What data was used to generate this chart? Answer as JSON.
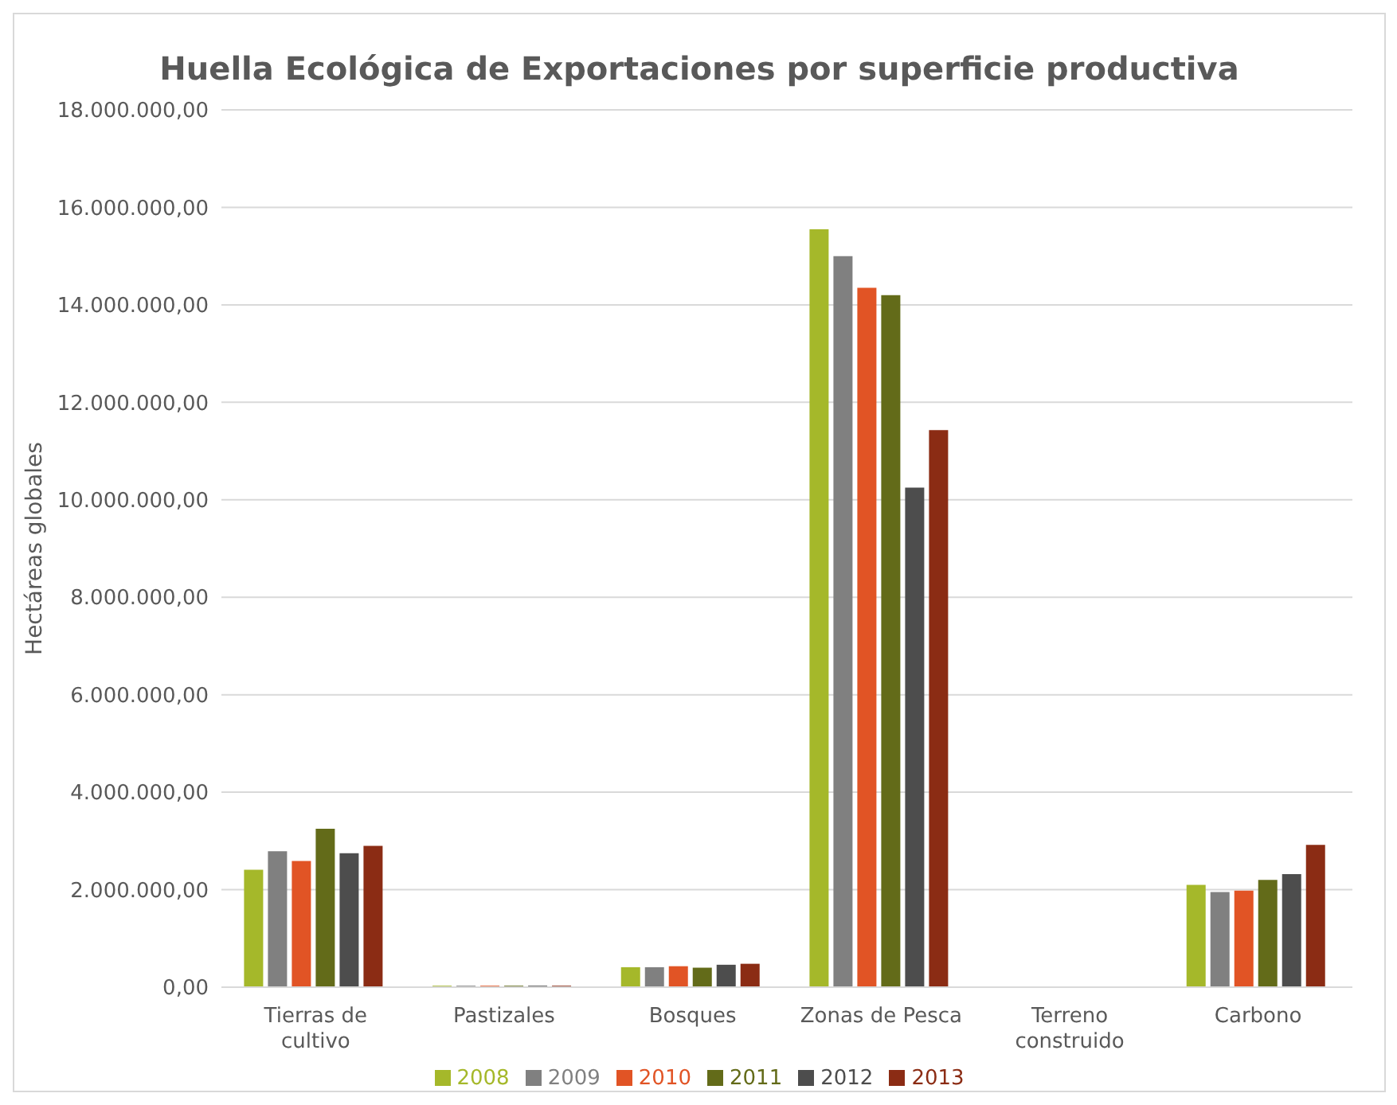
{
  "chart_data": {
    "type": "bar",
    "title": "Huella Ecológica de Exportaciones por superficie productiva",
    "ylabel": "Hectáreas globales",
    "categories": [
      "Tierras de cultivo",
      "Pastizales",
      "Bosques",
      "Zonas de Pesca",
      "Terreno construido",
      "Carbono"
    ],
    "series": [
      {
        "name": "2008",
        "color": "#a5b82a",
        "values": [
          2410000,
          30000,
          410000,
          15550000,
          0,
          2100000
        ]
      },
      {
        "name": "2009",
        "color": "#808080",
        "values": [
          2790000,
          30000,
          410000,
          15000000,
          0,
          1950000
        ]
      },
      {
        "name": "2010",
        "color": "#e15425",
        "values": [
          2590000,
          30000,
          430000,
          14350000,
          0,
          1980000
        ]
      },
      {
        "name": "2011",
        "color": "#636b19",
        "values": [
          3250000,
          30000,
          400000,
          14200000,
          0,
          2200000
        ]
      },
      {
        "name": "2012",
        "color": "#4d4d4d",
        "values": [
          2750000,
          30000,
          460000,
          10250000,
          0,
          2320000
        ]
      },
      {
        "name": "2013",
        "color": "#8b2c14",
        "values": [
          2900000,
          30000,
          480000,
          11430000,
          0,
          2920000
        ]
      }
    ],
    "ylim": [
      0,
      18000000
    ],
    "yticks": [
      {
        "value": 0,
        "label": "0,00"
      },
      {
        "value": 2000000,
        "label": "2.000.000,00"
      },
      {
        "value": 4000000,
        "label": "4.000.000,00"
      },
      {
        "value": 6000000,
        "label": "6.000.000,00"
      },
      {
        "value": 8000000,
        "label": "8.000.000,00"
      },
      {
        "value": 10000000,
        "label": "10.000.000,00"
      },
      {
        "value": 12000000,
        "label": "12.000.000,00"
      },
      {
        "value": 14000000,
        "label": "14.000.000,00"
      },
      {
        "value": 16000000,
        "label": "16.000.000,00"
      },
      {
        "value": 18000000,
        "label": "18.000.000,00"
      }
    ],
    "grid": "y",
    "legend": "bottom"
  }
}
